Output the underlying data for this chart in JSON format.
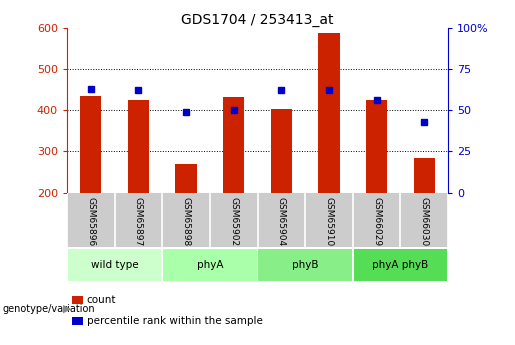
{
  "title": "GDS1704 / 253413_at",
  "samples": [
    "GSM65896",
    "GSM65897",
    "GSM65898",
    "GSM65902",
    "GSM65904",
    "GSM65910",
    "GSM66029",
    "GSM66030"
  ],
  "counts": [
    435,
    425,
    270,
    432,
    403,
    587,
    425,
    285
  ],
  "percentile_ranks": [
    63,
    62,
    49,
    50,
    62,
    62,
    56,
    43
  ],
  "ylim_left": [
    200,
    600
  ],
  "ylim_right": [
    0,
    100
  ],
  "yticks_left": [
    200,
    300,
    400,
    500,
    600
  ],
  "yticks_right": [
    0,
    25,
    50,
    75,
    100
  ],
  "grid_yticks": [
    300,
    400,
    500
  ],
  "groups": [
    {
      "label": "wild type",
      "color": "#ccffcc",
      "start": 0,
      "end": 2
    },
    {
      "label": "phyA",
      "color": "#aaffaa",
      "start": 2,
      "end": 4
    },
    {
      "label": "phyB",
      "color": "#88ee88",
      "start": 4,
      "end": 6
    },
    {
      "label": "phyA phyB",
      "color": "#55dd55",
      "start": 6,
      "end": 8
    }
  ],
  "bar_color": "#cc2200",
  "dot_color": "#0000cc",
  "bar_width": 0.45,
  "ylabel_left_color": "#cc2200",
  "ylabel_right_color": "#0000cc",
  "bg_color": "#ffffff",
  "label_area_color": "#cccccc",
  "legend_count_color": "#cc2200",
  "legend_pct_color": "#0000cc"
}
